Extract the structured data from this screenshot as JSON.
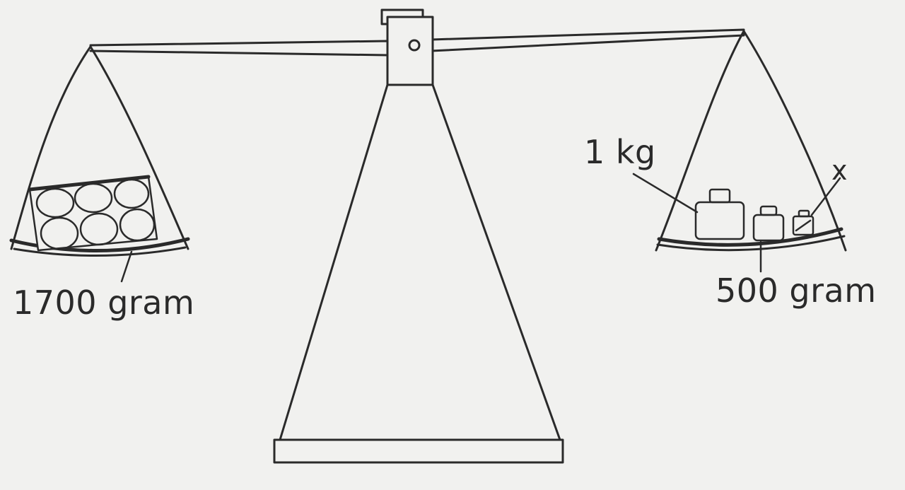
{
  "labels": {
    "left_weight": "1700 gram",
    "weight_1kg": "1 kg",
    "weight_x": "x",
    "weight_500": "500 gram"
  },
  "colors": {
    "ink": "#2a2a2a",
    "paper": "#f1f1ef"
  }
}
